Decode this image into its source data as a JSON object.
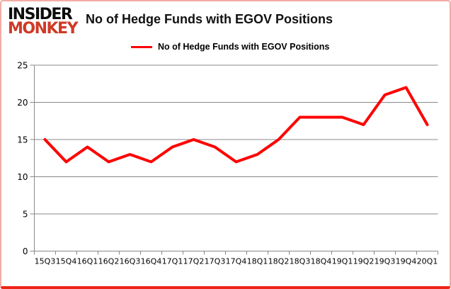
{
  "logo": {
    "line1": "INSIDER",
    "line2": "MONKEY"
  },
  "header": {
    "title": "No of Hedge Funds with EGOV Positions"
  },
  "legend": {
    "label": "No of Hedge Funds with EGOV Positions"
  },
  "colors": {
    "series": "#ff0000",
    "logo_black": "#0d0d0d",
    "logo_red": "#cf3a27",
    "grid": "#8a8a8a",
    "text": "#000000",
    "frame_border_light": "#f2aca6",
    "frame_border_strong": "#ee2416",
    "background": "#ffffff"
  },
  "chart_data": {
    "type": "line",
    "title": "No of Hedge Funds with EGOV Positions",
    "categories": [
      "15Q3",
      "15Q4",
      "16Q1",
      "16Q2",
      "16Q3",
      "16Q4",
      "17Q1",
      "17Q2",
      "17Q3",
      "17Q4",
      "18Q1",
      "18Q2",
      "18Q3",
      "18Q4",
      "19Q1",
      "19Q2",
      "19Q3",
      "19Q4",
      "20Q1"
    ],
    "series": [
      {
        "name": "No of Hedge Funds with EGOV Positions",
        "color": "#ff0000",
        "values": [
          15,
          12,
          14,
          12,
          13,
          12,
          14,
          15,
          14,
          12,
          13,
          15,
          18,
          18,
          18,
          17,
          21,
          22,
          17
        ]
      }
    ],
    "xlabel": "",
    "ylabel": "",
    "ylim": [
      0,
      25
    ],
    "yticks": [
      0,
      5,
      10,
      15,
      20,
      25
    ],
    "grid": "horizontal",
    "legend_position": "top"
  }
}
